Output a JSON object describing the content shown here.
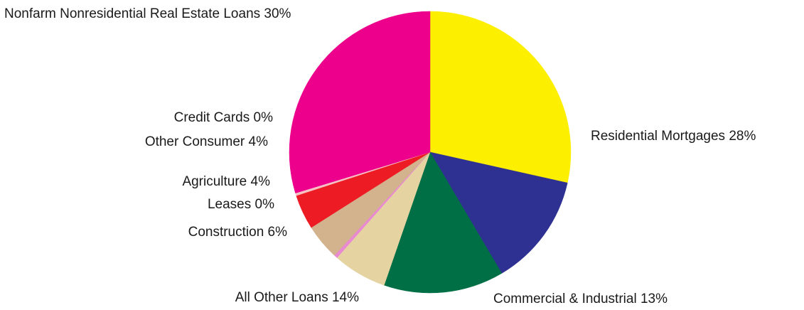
{
  "chart_data": {
    "type": "pie",
    "start": "top",
    "direction": "clockwise",
    "slices": [
      {
        "name": "Residential Mortgages",
        "label": "Residential Mortgages 28%",
        "value": 28.5,
        "color": "#fcef00"
      },
      {
        "name": "Commercial & Industrial",
        "label": "Commercial & Industrial 13%",
        "value": 13.0,
        "color": "#2e3192"
      },
      {
        "name": "All Other Loans",
        "label": "All Other Loans 14%",
        "value": 13.8,
        "color": "#006f45"
      },
      {
        "name": "Construction",
        "label": "Construction 6%",
        "value": 6.2,
        "color": "#e5d3a1"
      },
      {
        "name": "Leases",
        "label": "Leases 0%",
        "value": 0.4,
        "color": "#e889d1"
      },
      {
        "name": "Agriculture",
        "label": "Agriculture 4%",
        "value": 4.1,
        "color": "#d3b28e"
      },
      {
        "name": "Other Consumer",
        "label": "Other Consumer 4%",
        "value": 4.0,
        "color": "#ed1c24"
      },
      {
        "name": "Credit Cards",
        "label": "Credit Cards 0%",
        "value": 0.3,
        "color": "#f7c0c4"
      },
      {
        "name": "Nonfarm Nonresidential Real Estate Loans",
        "label": "Nonfarm Nonresidential Real Estate Loans 30%",
        "value": 29.7,
        "color": "#ec008c"
      }
    ]
  }
}
